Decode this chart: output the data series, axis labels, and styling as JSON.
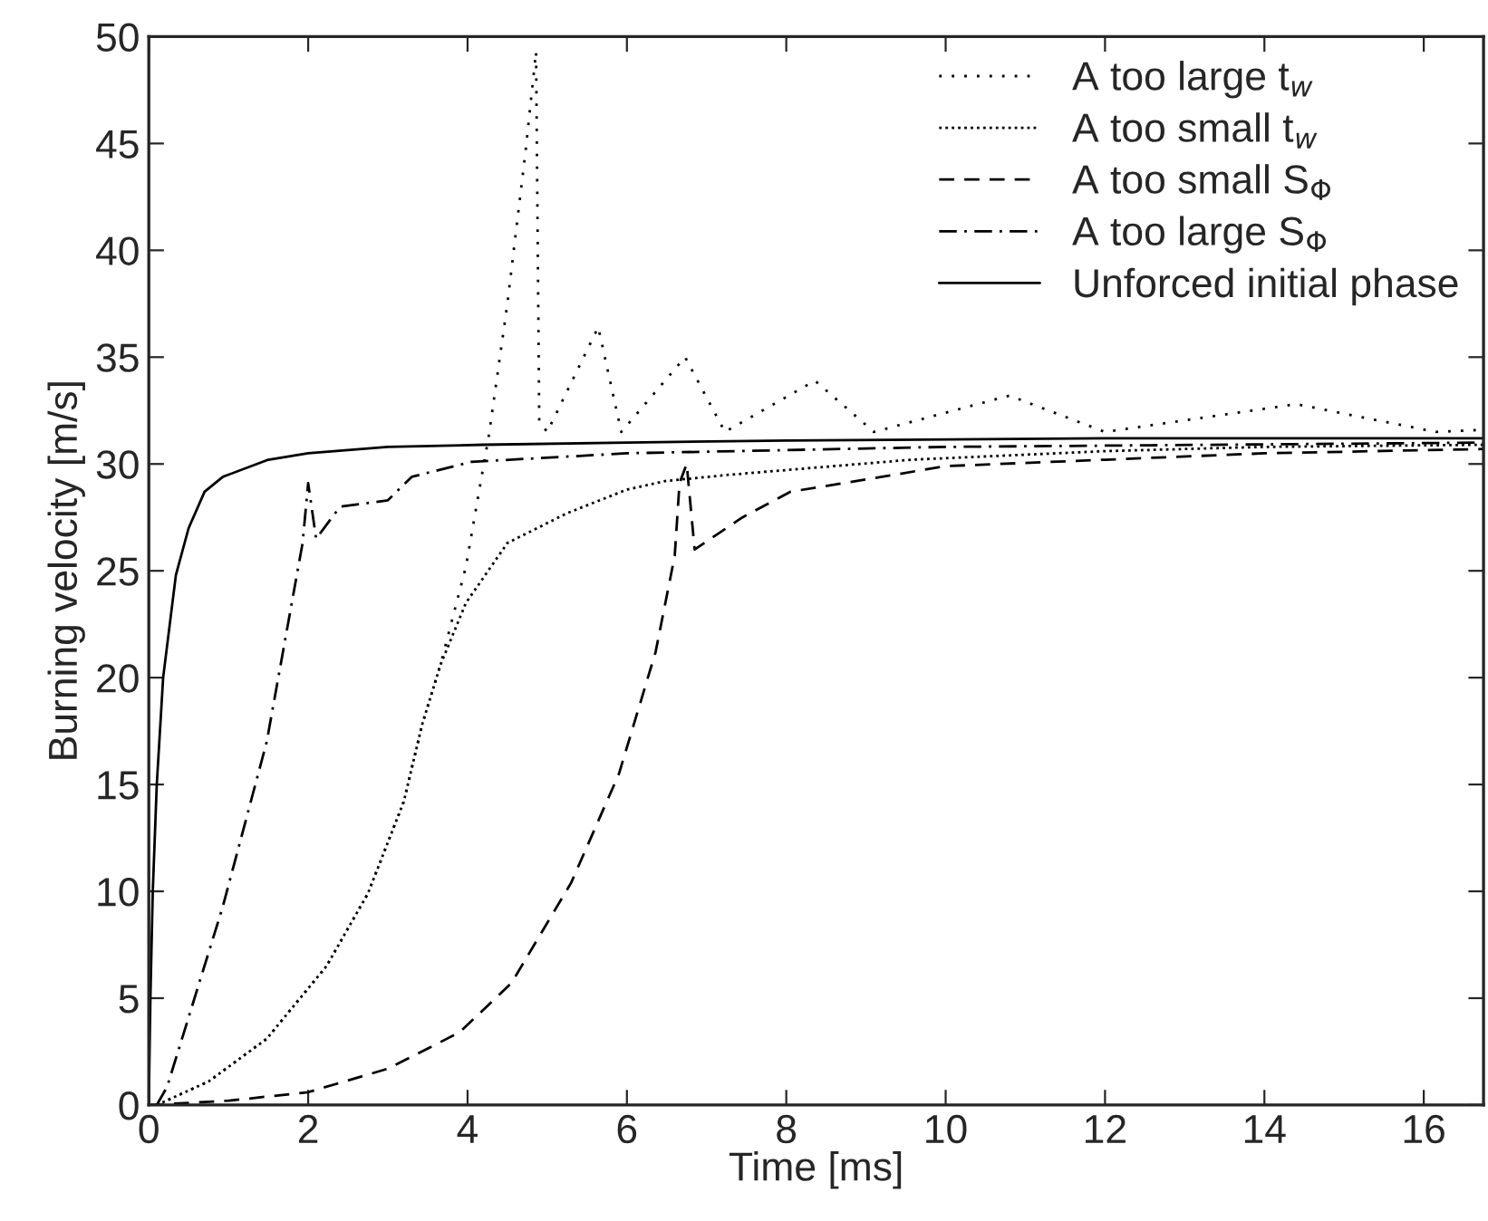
{
  "chart_data": {
    "type": "line",
    "xlabel": "Time [ms]",
    "ylabel": "Burning velocity [m/s]",
    "xlim": [
      0,
      16.75
    ],
    "ylim": [
      0,
      50
    ],
    "xticks": [
      0,
      2,
      4,
      6,
      8,
      10,
      12,
      14,
      16
    ],
    "yticks": [
      0,
      5,
      10,
      15,
      20,
      25,
      30,
      35,
      40,
      45,
      50
    ],
    "grid": false,
    "legend": "top right",
    "series": [
      {
        "name": "A too large t$_{w}$",
        "color": "#000000",
        "line_style": "dotted",
        "x": [
          0.1,
          0.75,
          1.48,
          2.23,
          2.75,
          3.2,
          3.43,
          3.66,
          3.98,
          4.27,
          4.5,
          4.73,
          4.86,
          4.9,
          5.0,
          5.64,
          5.93,
          6.73,
          7.23,
          8.36,
          9.1,
          10.8,
          12.0,
          14.4,
          16.15,
          16.75
        ],
        "values": [
          0,
          1.1,
          3.1,
          6.5,
          9.9,
          14.2,
          17.8,
          20.6,
          25.2,
          31.4,
          37.5,
          44.7,
          49.3,
          32,
          31.5,
          36.4,
          31.5,
          35,
          31.5,
          33.9,
          31.5,
          33.2,
          31.5,
          32.8,
          31.5,
          31.6
        ]
      },
      {
        "name": "A too small t$_{w}$",
        "color": "#000000",
        "line_style": "dense dotted",
        "x": [
          0.1,
          0.75,
          1.48,
          2.23,
          2.75,
          3.2,
          3.43,
          3.66,
          3.98,
          4.5,
          5.25,
          6.0,
          6.48,
          7.3,
          9.57,
          12,
          14,
          16.75
        ],
        "values": [
          0,
          1.1,
          3.1,
          6.5,
          9.9,
          14.2,
          17.8,
          20.6,
          23.5,
          26.3,
          27.7,
          28.8,
          29.2,
          29.5,
          30.2,
          30.6,
          30.8,
          30.9
        ]
      },
      {
        "name": "A too small S$_{Φ}$",
        "color": "#000000",
        "line_style": "dashed",
        "x": [
          0,
          1,
          2,
          3,
          3.9,
          4.55,
          5.3,
          5.9,
          6.36,
          6.6,
          6.66,
          6.75,
          6.85,
          7.45,
          8.05,
          9.2,
          10,
          12,
          14,
          16.75
        ],
        "values": [
          0,
          0.2,
          0.6,
          1.7,
          3.4,
          5.7,
          10.4,
          15.5,
          21.2,
          25.7,
          29.1,
          30,
          26,
          27.5,
          28.7,
          29.4,
          29.9,
          30.2,
          30.5,
          30.7
        ]
      },
      {
        "name": "A too large S$_{Φ}$",
        "color": "#000000",
        "line_style": "dashdot",
        "x": [
          0.1,
          0.23,
          0.93,
          1.48,
          1.93,
          2.0,
          2.1,
          2.4,
          3.0,
          3.3,
          4.05,
          6,
          10,
          16.75
        ],
        "values": [
          0,
          0.85,
          9.3,
          17,
          26.3,
          29.1,
          26.5,
          28,
          28.3,
          29.4,
          30.1,
          30.5,
          30.8,
          31
        ]
      },
      {
        "name": "Unforced initial phase",
        "color": "#000000",
        "line_style": "solid",
        "x": [
          0,
          0.02,
          0.05,
          0.1,
          0.18,
          0.34,
          0.5,
          0.7,
          0.93,
          1.5,
          2,
          3,
          4.2,
          6,
          8,
          12,
          16.75
        ],
        "values": [
          0,
          5,
          10,
          15,
          20,
          24.8,
          27,
          28.7,
          29.4,
          30.2,
          30.5,
          30.8,
          30.9,
          31.0,
          31.1,
          31.2,
          31.2
        ]
      }
    ]
  }
}
